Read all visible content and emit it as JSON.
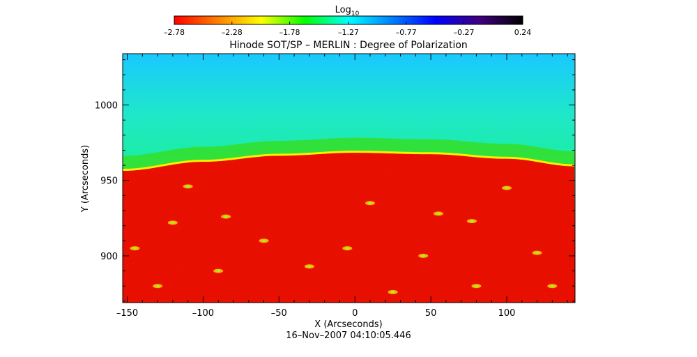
{
  "chart_data": {
    "type": "heatmap",
    "title": "Hinode SOT/SP – MERLIN : Degree of Polarization",
    "xlabel": "X (Arcseconds)",
    "ylabel": "Y (Arcseconds)",
    "timestamp": "16–Nov–2007 04:10:05.446",
    "colorbar": {
      "label_main": "Log",
      "label_sub": "10",
      "min": -2.78,
      "max": 0.24,
      "tick_values": [
        -2.78,
        -2.28,
        -1.78,
        -1.27,
        -0.77,
        -0.27,
        0.24
      ],
      "tick_labels": [
        "–2.78",
        "–2.28",
        "–1.78",
        "–1.27",
        "–0.77",
        "–0.27",
        "0.24"
      ],
      "colors": [
        "#ff0000",
        "#ff8000",
        "#ffff00",
        "#00ff00",
        "#00ffff",
        "#0080ff",
        "#0000ff",
        "#400080",
        "#000000"
      ]
    },
    "xlim": [
      -153,
      145
    ],
    "ylim": [
      869,
      1034
    ],
    "x_ticks": [
      -150,
      -100,
      -50,
      0,
      50,
      100
    ],
    "x_tick_labels": [
      "–150",
      "–100",
      "–50",
      "0",
      "50",
      "100"
    ],
    "y_ticks": [
      900,
      950,
      1000
    ],
    "y_tick_labels": [
      "900",
      "950",
      "1000"
    ],
    "limb": {
      "description_values": "solar limb y (arcsec) at x positions",
      "x": [
        -153,
        -100,
        -50,
        0,
        50,
        100,
        145
      ],
      "y": [
        957,
        963,
        967,
        969,
        968,
        965,
        960
      ]
    },
    "regions": [
      {
        "name": "disk",
        "log_value_approx": -2.78
      },
      {
        "name": "limb",
        "log_value_approx": -2.0
      },
      {
        "name": "off-limb near",
        "log_value_approx": -1.4
      },
      {
        "name": "off-limb far",
        "log_value_approx": -0.9
      }
    ],
    "bright_patches": [
      {
        "x": -110,
        "y": 946
      },
      {
        "x": -120,
        "y": 922
      },
      {
        "x": -85,
        "y": 926
      },
      {
        "x": -60,
        "y": 910
      },
      {
        "x": -145,
        "y": 905
      },
      {
        "x": -30,
        "y": 893
      },
      {
        "x": 45,
        "y": 900
      },
      {
        "x": 77,
        "y": 923
      },
      {
        "x": 80,
        "y": 880
      },
      {
        "x": 25,
        "y": 876
      },
      {
        "x": 120,
        "y": 902
      },
      {
        "x": -90,
        "y": 890
      },
      {
        "x": 10,
        "y": 935
      },
      {
        "x": -5,
        "y": 905
      },
      {
        "x": 100,
        "y": 945
      },
      {
        "x": 55,
        "y": 928
      },
      {
        "x": -130,
        "y": 880
      },
      {
        "x": 130,
        "y": 880
      }
    ]
  }
}
